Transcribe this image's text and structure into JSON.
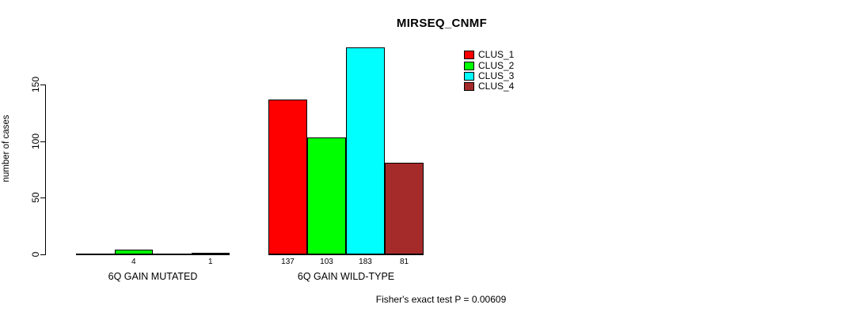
{
  "title": "MIRSEQ_CNMF",
  "footer": "Fisher's exact test P = 0.00609",
  "colors": {
    "background": "#ffffff",
    "axis": "#000000",
    "text": "#000000"
  },
  "chart_data": {
    "type": "bar",
    "title": "MIRSEQ_CNMF",
    "xlabel": "",
    "ylabel": "number of cases",
    "categories": [
      "6Q GAIN MUTATED",
      "6Q GAIN WILD-TYPE"
    ],
    "series": [
      {
        "name": "CLUS_1",
        "color": "#FF0000",
        "values": [
          0,
          137
        ]
      },
      {
        "name": "CLUS_2",
        "color": "#00FF00",
        "values": [
          4,
          103
        ]
      },
      {
        "name": "CLUS_3",
        "color": "#00FFFF",
        "values": [
          0,
          183
        ]
      },
      {
        "name": "CLUS_4",
        "color": "#A52A2A",
        "values": [
          1,
          81
        ]
      }
    ],
    "bar_value_labels": [
      [
        "",
        "4",
        "",
        "1"
      ],
      [
        "137",
        "103",
        "183",
        "81"
      ]
    ],
    "yticks": [
      0,
      50,
      100,
      150
    ],
    "ylim": [
      0,
      190
    ],
    "grid": false,
    "legend_position": "top-right",
    "annotation": "Fisher's exact test P = 0.00609"
  }
}
